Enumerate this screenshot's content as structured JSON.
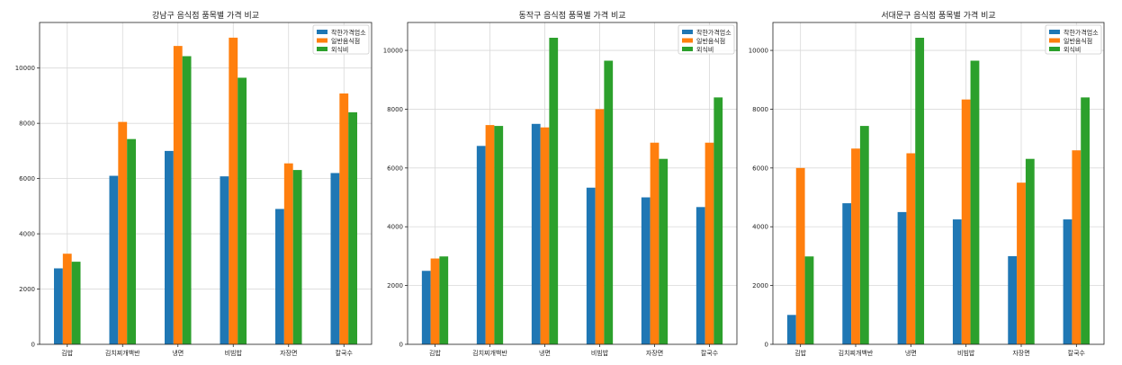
{
  "chart_data": [
    {
      "type": "bar",
      "title": "강남구 음식점 품목별 가격 비교",
      "categories": [
        "김밥",
        "김치찌개백반",
        "냉면",
        "비빔밥",
        "자장면",
        "칼국수"
      ],
      "series": [
        {
          "name": "착한가격업소",
          "color": "#1f77b4",
          "values": [
            2750,
            6100,
            7000,
            6080,
            4900,
            6200
          ]
        },
        {
          "name": "일반음식점",
          "color": "#ff7f0e",
          "values": [
            3280,
            8050,
            10800,
            11100,
            6550,
            9080
          ]
        },
        {
          "name": "외식비",
          "color": "#2ca02c",
          "values": [
            2990,
            7430,
            10430,
            9650,
            6310,
            8400
          ]
        }
      ],
      "yticks": [
        0,
        2000,
        4000,
        6000,
        8000,
        10000
      ],
      "ylim": [
        0,
        11650
      ],
      "grid": true,
      "legend": "top-right"
    },
    {
      "type": "bar",
      "title": "동작구 음식점 품목별 가격 비교",
      "categories": [
        "김밥",
        "김치찌개백반",
        "냉면",
        "비빔밥",
        "자장면",
        "칼국수"
      ],
      "series": [
        {
          "name": "착한가격업소",
          "color": "#1f77b4",
          "values": [
            2500,
            6750,
            7500,
            5330,
            5000,
            4670
          ]
        },
        {
          "name": "일반음식점",
          "color": "#ff7f0e",
          "values": [
            2920,
            7460,
            7380,
            8000,
            6860,
            6860
          ]
        },
        {
          "name": "외식비",
          "color": "#2ca02c",
          "values": [
            2990,
            7430,
            10430,
            9650,
            6310,
            8400
          ]
        }
      ],
      "yticks": [
        0,
        2000,
        4000,
        6000,
        8000,
        10000
      ],
      "ylim": [
        0,
        10950
      ],
      "grid": true,
      "legend": "top-right"
    },
    {
      "type": "bar",
      "title": "서대문구 음식점 품목별 가격 비교",
      "categories": [
        "김밥",
        "김치찌개백반",
        "냉면",
        "비빔밥",
        "자장면",
        "칼국수"
      ],
      "series": [
        {
          "name": "착한가격업소",
          "color": "#1f77b4",
          "values": [
            1000,
            4800,
            4500,
            4250,
            3000,
            4250
          ]
        },
        {
          "name": "일반음식점",
          "color": "#ff7f0e",
          "values": [
            6000,
            6660,
            6500,
            8330,
            5500,
            6600
          ]
        },
        {
          "name": "외식비",
          "color": "#2ca02c",
          "values": [
            2990,
            7430,
            10430,
            9650,
            6310,
            8400
          ]
        }
      ],
      "yticks": [
        0,
        2000,
        4000,
        6000,
        8000,
        10000
      ],
      "ylim": [
        0,
        10950
      ],
      "grid": true,
      "legend": "top-right"
    }
  ]
}
